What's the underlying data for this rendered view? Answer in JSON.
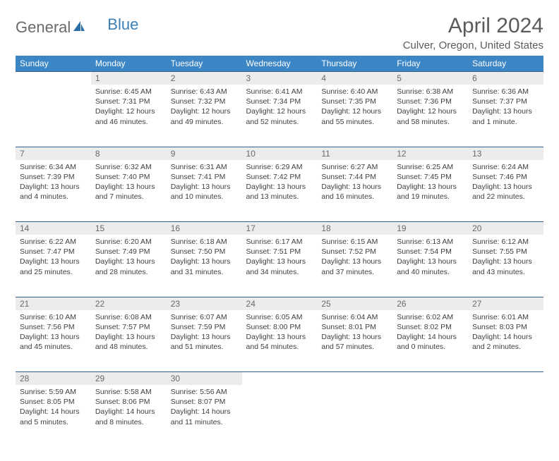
{
  "logo": {
    "text1": "General",
    "text2": "Blue"
  },
  "title": "April 2024",
  "location": "Culver, Oregon, United States",
  "dayHeaders": [
    "Sunday",
    "Monday",
    "Tuesday",
    "Wednesday",
    "Thursday",
    "Friday",
    "Saturday"
  ],
  "colors": {
    "headerBg": "#3d86c6",
    "headerText": "#ffffff",
    "dayNumBg": "#ececec",
    "borderTop": "#325f8a",
    "textColor": "#3f3f3f",
    "titleColor": "#5b5b5b",
    "logoGray": "#6a6a6a",
    "logoBlue": "#3c7fb5"
  },
  "weeks": [
    {
      "nums": [
        "",
        "1",
        "2",
        "3",
        "4",
        "5",
        "6"
      ],
      "cells": [
        {
          "empty": true
        },
        {
          "sunrise": "Sunrise: 6:45 AM",
          "sunset": "Sunset: 7:31 PM",
          "day1": "Daylight: 12 hours",
          "day2": "and 46 minutes."
        },
        {
          "sunrise": "Sunrise: 6:43 AM",
          "sunset": "Sunset: 7:32 PM",
          "day1": "Daylight: 12 hours",
          "day2": "and 49 minutes."
        },
        {
          "sunrise": "Sunrise: 6:41 AM",
          "sunset": "Sunset: 7:34 PM",
          "day1": "Daylight: 12 hours",
          "day2": "and 52 minutes."
        },
        {
          "sunrise": "Sunrise: 6:40 AM",
          "sunset": "Sunset: 7:35 PM",
          "day1": "Daylight: 12 hours",
          "day2": "and 55 minutes."
        },
        {
          "sunrise": "Sunrise: 6:38 AM",
          "sunset": "Sunset: 7:36 PM",
          "day1": "Daylight: 12 hours",
          "day2": "and 58 minutes."
        },
        {
          "sunrise": "Sunrise: 6:36 AM",
          "sunset": "Sunset: 7:37 PM",
          "day1": "Daylight: 13 hours",
          "day2": "and 1 minute."
        }
      ]
    },
    {
      "nums": [
        "7",
        "8",
        "9",
        "10",
        "11",
        "12",
        "13"
      ],
      "cells": [
        {
          "sunrise": "Sunrise: 6:34 AM",
          "sunset": "Sunset: 7:39 PM",
          "day1": "Daylight: 13 hours",
          "day2": "and 4 minutes."
        },
        {
          "sunrise": "Sunrise: 6:32 AM",
          "sunset": "Sunset: 7:40 PM",
          "day1": "Daylight: 13 hours",
          "day2": "and 7 minutes."
        },
        {
          "sunrise": "Sunrise: 6:31 AM",
          "sunset": "Sunset: 7:41 PM",
          "day1": "Daylight: 13 hours",
          "day2": "and 10 minutes."
        },
        {
          "sunrise": "Sunrise: 6:29 AM",
          "sunset": "Sunset: 7:42 PM",
          "day1": "Daylight: 13 hours",
          "day2": "and 13 minutes."
        },
        {
          "sunrise": "Sunrise: 6:27 AM",
          "sunset": "Sunset: 7:44 PM",
          "day1": "Daylight: 13 hours",
          "day2": "and 16 minutes."
        },
        {
          "sunrise": "Sunrise: 6:25 AM",
          "sunset": "Sunset: 7:45 PM",
          "day1": "Daylight: 13 hours",
          "day2": "and 19 minutes."
        },
        {
          "sunrise": "Sunrise: 6:24 AM",
          "sunset": "Sunset: 7:46 PM",
          "day1": "Daylight: 13 hours",
          "day2": "and 22 minutes."
        }
      ]
    },
    {
      "nums": [
        "14",
        "15",
        "16",
        "17",
        "18",
        "19",
        "20"
      ],
      "cells": [
        {
          "sunrise": "Sunrise: 6:22 AM",
          "sunset": "Sunset: 7:47 PM",
          "day1": "Daylight: 13 hours",
          "day2": "and 25 minutes."
        },
        {
          "sunrise": "Sunrise: 6:20 AM",
          "sunset": "Sunset: 7:49 PM",
          "day1": "Daylight: 13 hours",
          "day2": "and 28 minutes."
        },
        {
          "sunrise": "Sunrise: 6:18 AM",
          "sunset": "Sunset: 7:50 PM",
          "day1": "Daylight: 13 hours",
          "day2": "and 31 minutes."
        },
        {
          "sunrise": "Sunrise: 6:17 AM",
          "sunset": "Sunset: 7:51 PM",
          "day1": "Daylight: 13 hours",
          "day2": "and 34 minutes."
        },
        {
          "sunrise": "Sunrise: 6:15 AM",
          "sunset": "Sunset: 7:52 PM",
          "day1": "Daylight: 13 hours",
          "day2": "and 37 minutes."
        },
        {
          "sunrise": "Sunrise: 6:13 AM",
          "sunset": "Sunset: 7:54 PM",
          "day1": "Daylight: 13 hours",
          "day2": "and 40 minutes."
        },
        {
          "sunrise": "Sunrise: 6:12 AM",
          "sunset": "Sunset: 7:55 PM",
          "day1": "Daylight: 13 hours",
          "day2": "and 43 minutes."
        }
      ]
    },
    {
      "nums": [
        "21",
        "22",
        "23",
        "24",
        "25",
        "26",
        "27"
      ],
      "cells": [
        {
          "sunrise": "Sunrise: 6:10 AM",
          "sunset": "Sunset: 7:56 PM",
          "day1": "Daylight: 13 hours",
          "day2": "and 45 minutes."
        },
        {
          "sunrise": "Sunrise: 6:08 AM",
          "sunset": "Sunset: 7:57 PM",
          "day1": "Daylight: 13 hours",
          "day2": "and 48 minutes."
        },
        {
          "sunrise": "Sunrise: 6:07 AM",
          "sunset": "Sunset: 7:59 PM",
          "day1": "Daylight: 13 hours",
          "day2": "and 51 minutes."
        },
        {
          "sunrise": "Sunrise: 6:05 AM",
          "sunset": "Sunset: 8:00 PM",
          "day1": "Daylight: 13 hours",
          "day2": "and 54 minutes."
        },
        {
          "sunrise": "Sunrise: 6:04 AM",
          "sunset": "Sunset: 8:01 PM",
          "day1": "Daylight: 13 hours",
          "day2": "and 57 minutes."
        },
        {
          "sunrise": "Sunrise: 6:02 AM",
          "sunset": "Sunset: 8:02 PM",
          "day1": "Daylight: 14 hours",
          "day2": "and 0 minutes."
        },
        {
          "sunrise": "Sunrise: 6:01 AM",
          "sunset": "Sunset: 8:03 PM",
          "day1": "Daylight: 14 hours",
          "day2": "and 2 minutes."
        }
      ]
    },
    {
      "nums": [
        "28",
        "29",
        "30",
        "",
        "",
        "",
        ""
      ],
      "cells": [
        {
          "sunrise": "Sunrise: 5:59 AM",
          "sunset": "Sunset: 8:05 PM",
          "day1": "Daylight: 14 hours",
          "day2": "and 5 minutes."
        },
        {
          "sunrise": "Sunrise: 5:58 AM",
          "sunset": "Sunset: 8:06 PM",
          "day1": "Daylight: 14 hours",
          "day2": "and 8 minutes."
        },
        {
          "sunrise": "Sunrise: 5:56 AM",
          "sunset": "Sunset: 8:07 PM",
          "day1": "Daylight: 14 hours",
          "day2": "and 11 minutes."
        },
        {
          "empty": true
        },
        {
          "empty": true
        },
        {
          "empty": true
        },
        {
          "empty": true
        }
      ]
    }
  ]
}
